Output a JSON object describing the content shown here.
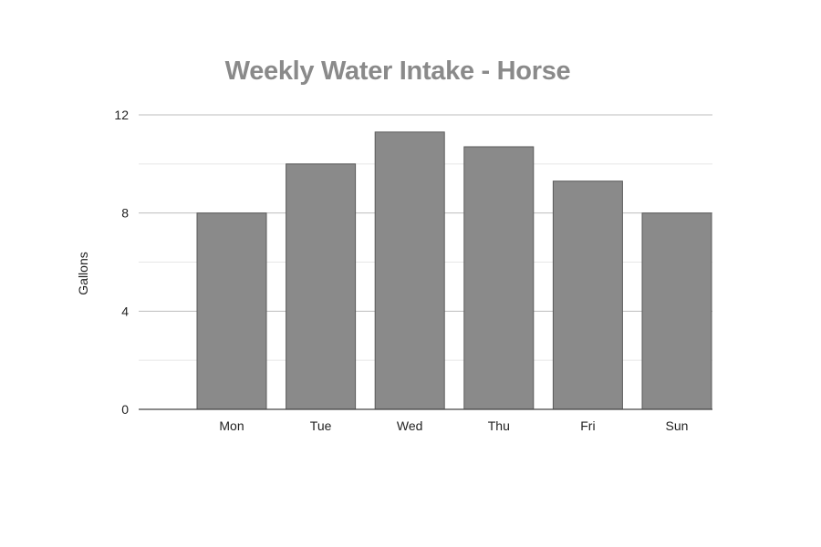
{
  "chart_data": {
    "type": "bar",
    "title": "Weekly Water Intake - Horse",
    "xlabel": "",
    "ylabel": "Gallons",
    "categories": [
      "Mon",
      "Tue",
      "Wed",
      "Thu",
      "Fri",
      "Sun"
    ],
    "values": [
      8.0,
      10.0,
      11.3,
      10.7,
      9.3,
      8.0
    ],
    "ylim": [
      0,
      12
    ],
    "yticks": [
      0,
      4,
      8,
      12
    ],
    "grid": true,
    "legend": "none",
    "colors": {
      "bar": "#8a8a8a",
      "bar_stroke": "#5a5a5a",
      "grid_major": "#bdbdbd",
      "grid_minor": "#e6e6e6",
      "axis": "#444444"
    }
  }
}
